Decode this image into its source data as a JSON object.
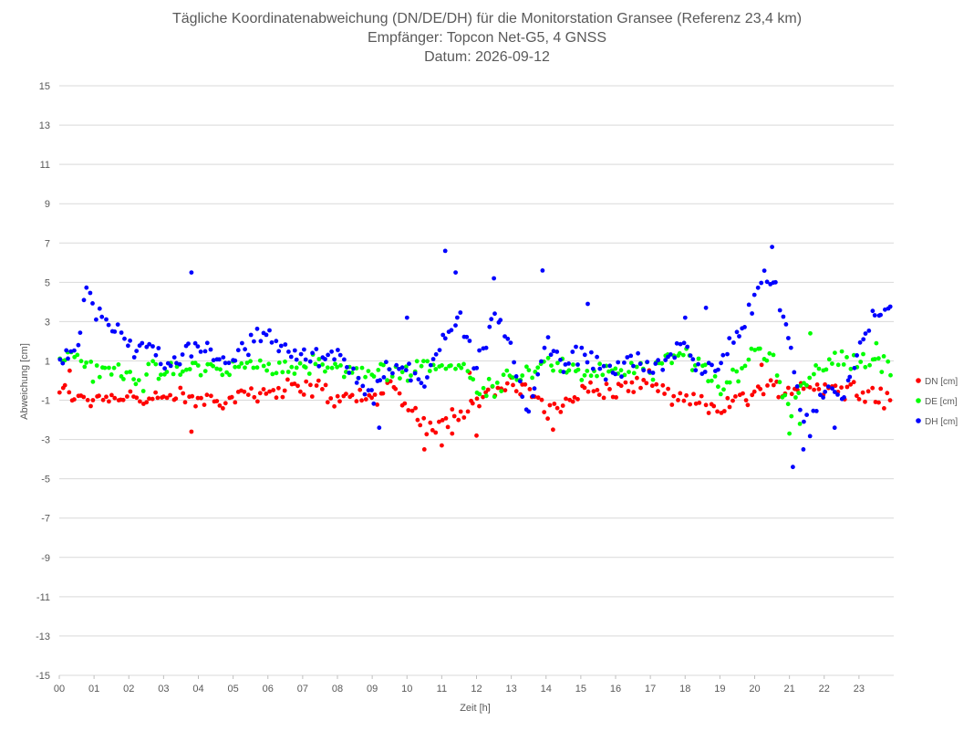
{
  "chart_data": {
    "type": "scatter",
    "title_lines": [
      "Tägliche Koordinatenabweichung (DN/DE/DH) für die Monitorstation Gransee (Referenz 23,4 km)",
      "Empfänger: Topcon Net-G5, 4 GNSS",
      "Datum: 2026-09-12"
    ],
    "xlabel": "Zeit [h]",
    "ylabel": "Abweichung [cm]",
    "xlim": [
      0,
      24
    ],
    "ylim": [
      -15,
      15
    ],
    "x_ticks": [
      "00",
      "01",
      "02",
      "03",
      "04",
      "05",
      "06",
      "07",
      "08",
      "09",
      "10",
      "11",
      "12",
      "13",
      "14",
      "15",
      "16",
      "17",
      "18",
      "19",
      "20",
      "21",
      "22",
      "23"
    ],
    "y_ticks": [
      "15",
      "13",
      "11",
      "9",
      "7",
      "5",
      "3",
      "1",
      "-1",
      "-3",
      "-5",
      "-7",
      "-9",
      "-11",
      "-13",
      "-15"
    ],
    "legend_position": "right",
    "grid": "horizontal",
    "series": [
      {
        "name": "DN [cm]",
        "color": "#ff0000",
        "anchors": [
          [
            0,
            -0.5
          ],
          [
            0.5,
            -0.9
          ],
          [
            1,
            -0.9
          ],
          [
            1.5,
            -0.8
          ],
          [
            2,
            -0.7
          ],
          [
            2.5,
            -1.0
          ],
          [
            3,
            -1.0
          ],
          [
            3.5,
            -0.8
          ],
          [
            3.8,
            -1.1
          ],
          [
            4,
            -1.0
          ],
          [
            4.5,
            -0.9
          ],
          [
            5,
            -1.0
          ],
          [
            5.5,
            -0.5
          ],
          [
            6,
            -0.6
          ],
          [
            6.5,
            -0.4
          ],
          [
            7,
            -0.4
          ],
          [
            7.5,
            -0.4
          ],
          [
            8,
            -1.0
          ],
          [
            8.5,
            -0.8
          ],
          [
            9,
            -0.9
          ],
          [
            9.5,
            -0.3
          ],
          [
            10,
            -1.2
          ],
          [
            10.5,
            -2.3
          ],
          [
            11,
            -2.2
          ],
          [
            11.5,
            -1.5
          ],
          [
            12,
            -1.0
          ],
          [
            12.5,
            -0.5
          ],
          [
            13,
            -0.4
          ],
          [
            13.5,
            -0.3
          ],
          [
            14,
            -1.8
          ],
          [
            14.5,
            -1.0
          ],
          [
            15,
            -0.5
          ],
          [
            15.5,
            -0.5
          ],
          [
            16,
            -0.6
          ],
          [
            16.5,
            -0.2
          ],
          [
            17,
            0.1
          ],
          [
            17.5,
            -1.0
          ],
          [
            18,
            -1.1
          ],
          [
            18.5,
            -1.1
          ],
          [
            19,
            -1.4
          ],
          [
            19.5,
            -1.0
          ],
          [
            20,
            -0.6
          ],
          [
            20.5,
            -0.4
          ],
          [
            21,
            -0.5
          ],
          [
            21.5,
            -0.2
          ],
          [
            22,
            -0.3
          ],
          [
            22.5,
            -0.5
          ],
          [
            23,
            -0.4
          ],
          [
            23.9,
            -1.0
          ]
        ],
        "outliers": [
          [
            3.8,
            -2.6
          ],
          [
            10.5,
            -3.5
          ],
          [
            11,
            -3.3
          ],
          [
            11.3,
            -2.7
          ],
          [
            12,
            -2.8
          ],
          [
            14.2,
            -2.5
          ],
          [
            0.3,
            0.5
          ],
          [
            11.8,
            0.4
          ],
          [
            20.2,
            0.8
          ]
        ]
      },
      {
        "name": "DE [cm]",
        "color": "#00ff00",
        "anchors": [
          [
            0,
            1.0
          ],
          [
            0.5,
            1.3
          ],
          [
            0.8,
            1.0
          ],
          [
            1,
            0.2
          ],
          [
            1.5,
            0.6
          ],
          [
            2,
            0.4
          ],
          [
            2.3,
            -0.2
          ],
          [
            2.7,
            0.6
          ],
          [
            3,
            0.3
          ],
          [
            3.5,
            0.5
          ],
          [
            4,
            0.8
          ],
          [
            4.5,
            0.5
          ],
          [
            5,
            0.7
          ],
          [
            5.5,
            0.6
          ],
          [
            6,
            0.8
          ],
          [
            6.5,
            0.6
          ],
          [
            7,
            0.8
          ],
          [
            7.5,
            0.9
          ],
          [
            8,
            0.5
          ],
          [
            8.5,
            0.3
          ],
          [
            9,
            0.4
          ],
          [
            9.5,
            0.3
          ],
          [
            10,
            0.5
          ],
          [
            10.5,
            0.9
          ],
          [
            11,
            0.7
          ],
          [
            11.5,
            1.0
          ],
          [
            12,
            -0.5
          ],
          [
            12.5,
            -0.3
          ],
          [
            13,
            0.2
          ],
          [
            13.5,
            0.6
          ],
          [
            14,
            0.9
          ],
          [
            14.5,
            0.6
          ],
          [
            15,
            0.3
          ],
          [
            15.5,
            0.6
          ],
          [
            16,
            0.2
          ],
          [
            16.5,
            0.7
          ],
          [
            17,
            0.5
          ],
          [
            17.5,
            1.0
          ],
          [
            18,
            1.2
          ],
          [
            18.5,
            0.7
          ],
          [
            19,
            -0.7
          ],
          [
            19.5,
            0.4
          ],
          [
            20,
            1.6
          ],
          [
            20.5,
            1.2
          ],
          [
            21,
            -1.5
          ],
          [
            21.5,
            0.2
          ],
          [
            22,
            0.8
          ],
          [
            22.5,
            1.3
          ],
          [
            23,
            0.9
          ],
          [
            23.5,
            1.0
          ],
          [
            23.9,
            0.6
          ]
        ],
        "outliers": [
          [
            21,
            -2.7
          ],
          [
            21.3,
            -2.2
          ],
          [
            21.6,
            2.4
          ],
          [
            23.5,
            1.9
          ]
        ]
      },
      {
        "name": "DH [cm]",
        "color": "#0000ff",
        "anchors": [
          [
            0,
            1.0
          ],
          [
            0.3,
            1.3
          ],
          [
            0.6,
            2.2
          ],
          [
            0.8,
            4.8
          ],
          [
            1,
            3.7
          ],
          [
            1.3,
            3.4
          ],
          [
            1.7,
            2.5
          ],
          [
            2,
            1.5
          ],
          [
            2.3,
            1.7
          ],
          [
            2.7,
            1.8
          ],
          [
            3,
            1.0
          ],
          [
            3.5,
            1.1
          ],
          [
            4,
            1.8
          ],
          [
            4.5,
            1.4
          ],
          [
            5,
            0.8
          ],
          [
            5.5,
            2.0
          ],
          [
            6,
            2.3
          ],
          [
            6.5,
            1.6
          ],
          [
            7,
            1.1
          ],
          [
            7.5,
            1.3
          ],
          [
            8,
            1.6
          ],
          [
            8.5,
            0.2
          ],
          [
            9,
            -0.9
          ],
          [
            9.5,
            0.8
          ],
          [
            10,
            0.5
          ],
          [
            10.5,
            -0.3
          ],
          [
            11,
            2.2
          ],
          [
            11.5,
            3.5
          ],
          [
            12,
            0.7
          ],
          [
            12.5,
            3.3
          ],
          [
            13,
            1.4
          ],
          [
            13.5,
            -1.5
          ],
          [
            14,
            2.0
          ],
          [
            14.5,
            0.5
          ],
          [
            15,
            1.5
          ],
          [
            15.5,
            0.8
          ],
          [
            16,
            0.4
          ],
          [
            16.5,
            1.0
          ],
          [
            17,
            0.6
          ],
          [
            17.5,
            0.9
          ],
          [
            18,
            2.1
          ],
          [
            18.5,
            0.2
          ],
          [
            19,
            1.2
          ],
          [
            19.5,
            2.3
          ],
          [
            20,
            4.0
          ],
          [
            20.3,
            5.4
          ],
          [
            20.6,
            4.8
          ],
          [
            21,
            2.0
          ],
          [
            21.3,
            -1.8
          ],
          [
            21.6,
            -2.4
          ],
          [
            22,
            -0.6
          ],
          [
            22.5,
            -0.9
          ],
          [
            23,
            1.6
          ],
          [
            23.4,
            3.3
          ],
          [
            23.9,
            3.5
          ]
        ],
        "outliers": [
          [
            3.8,
            5.5
          ],
          [
            11.1,
            6.6
          ],
          [
            11.4,
            5.5
          ],
          [
            12.5,
            5.2
          ],
          [
            13.9,
            5.6
          ],
          [
            20.5,
            6.8
          ],
          [
            21.1,
            -4.4
          ],
          [
            21.4,
            -3.5
          ],
          [
            22.3,
            -2.4
          ],
          [
            9.2,
            -2.4
          ],
          [
            10,
            3.2
          ],
          [
            15.2,
            3.9
          ],
          [
            18,
            3.2
          ],
          [
            18.6,
            3.7
          ]
        ]
      }
    ]
  }
}
